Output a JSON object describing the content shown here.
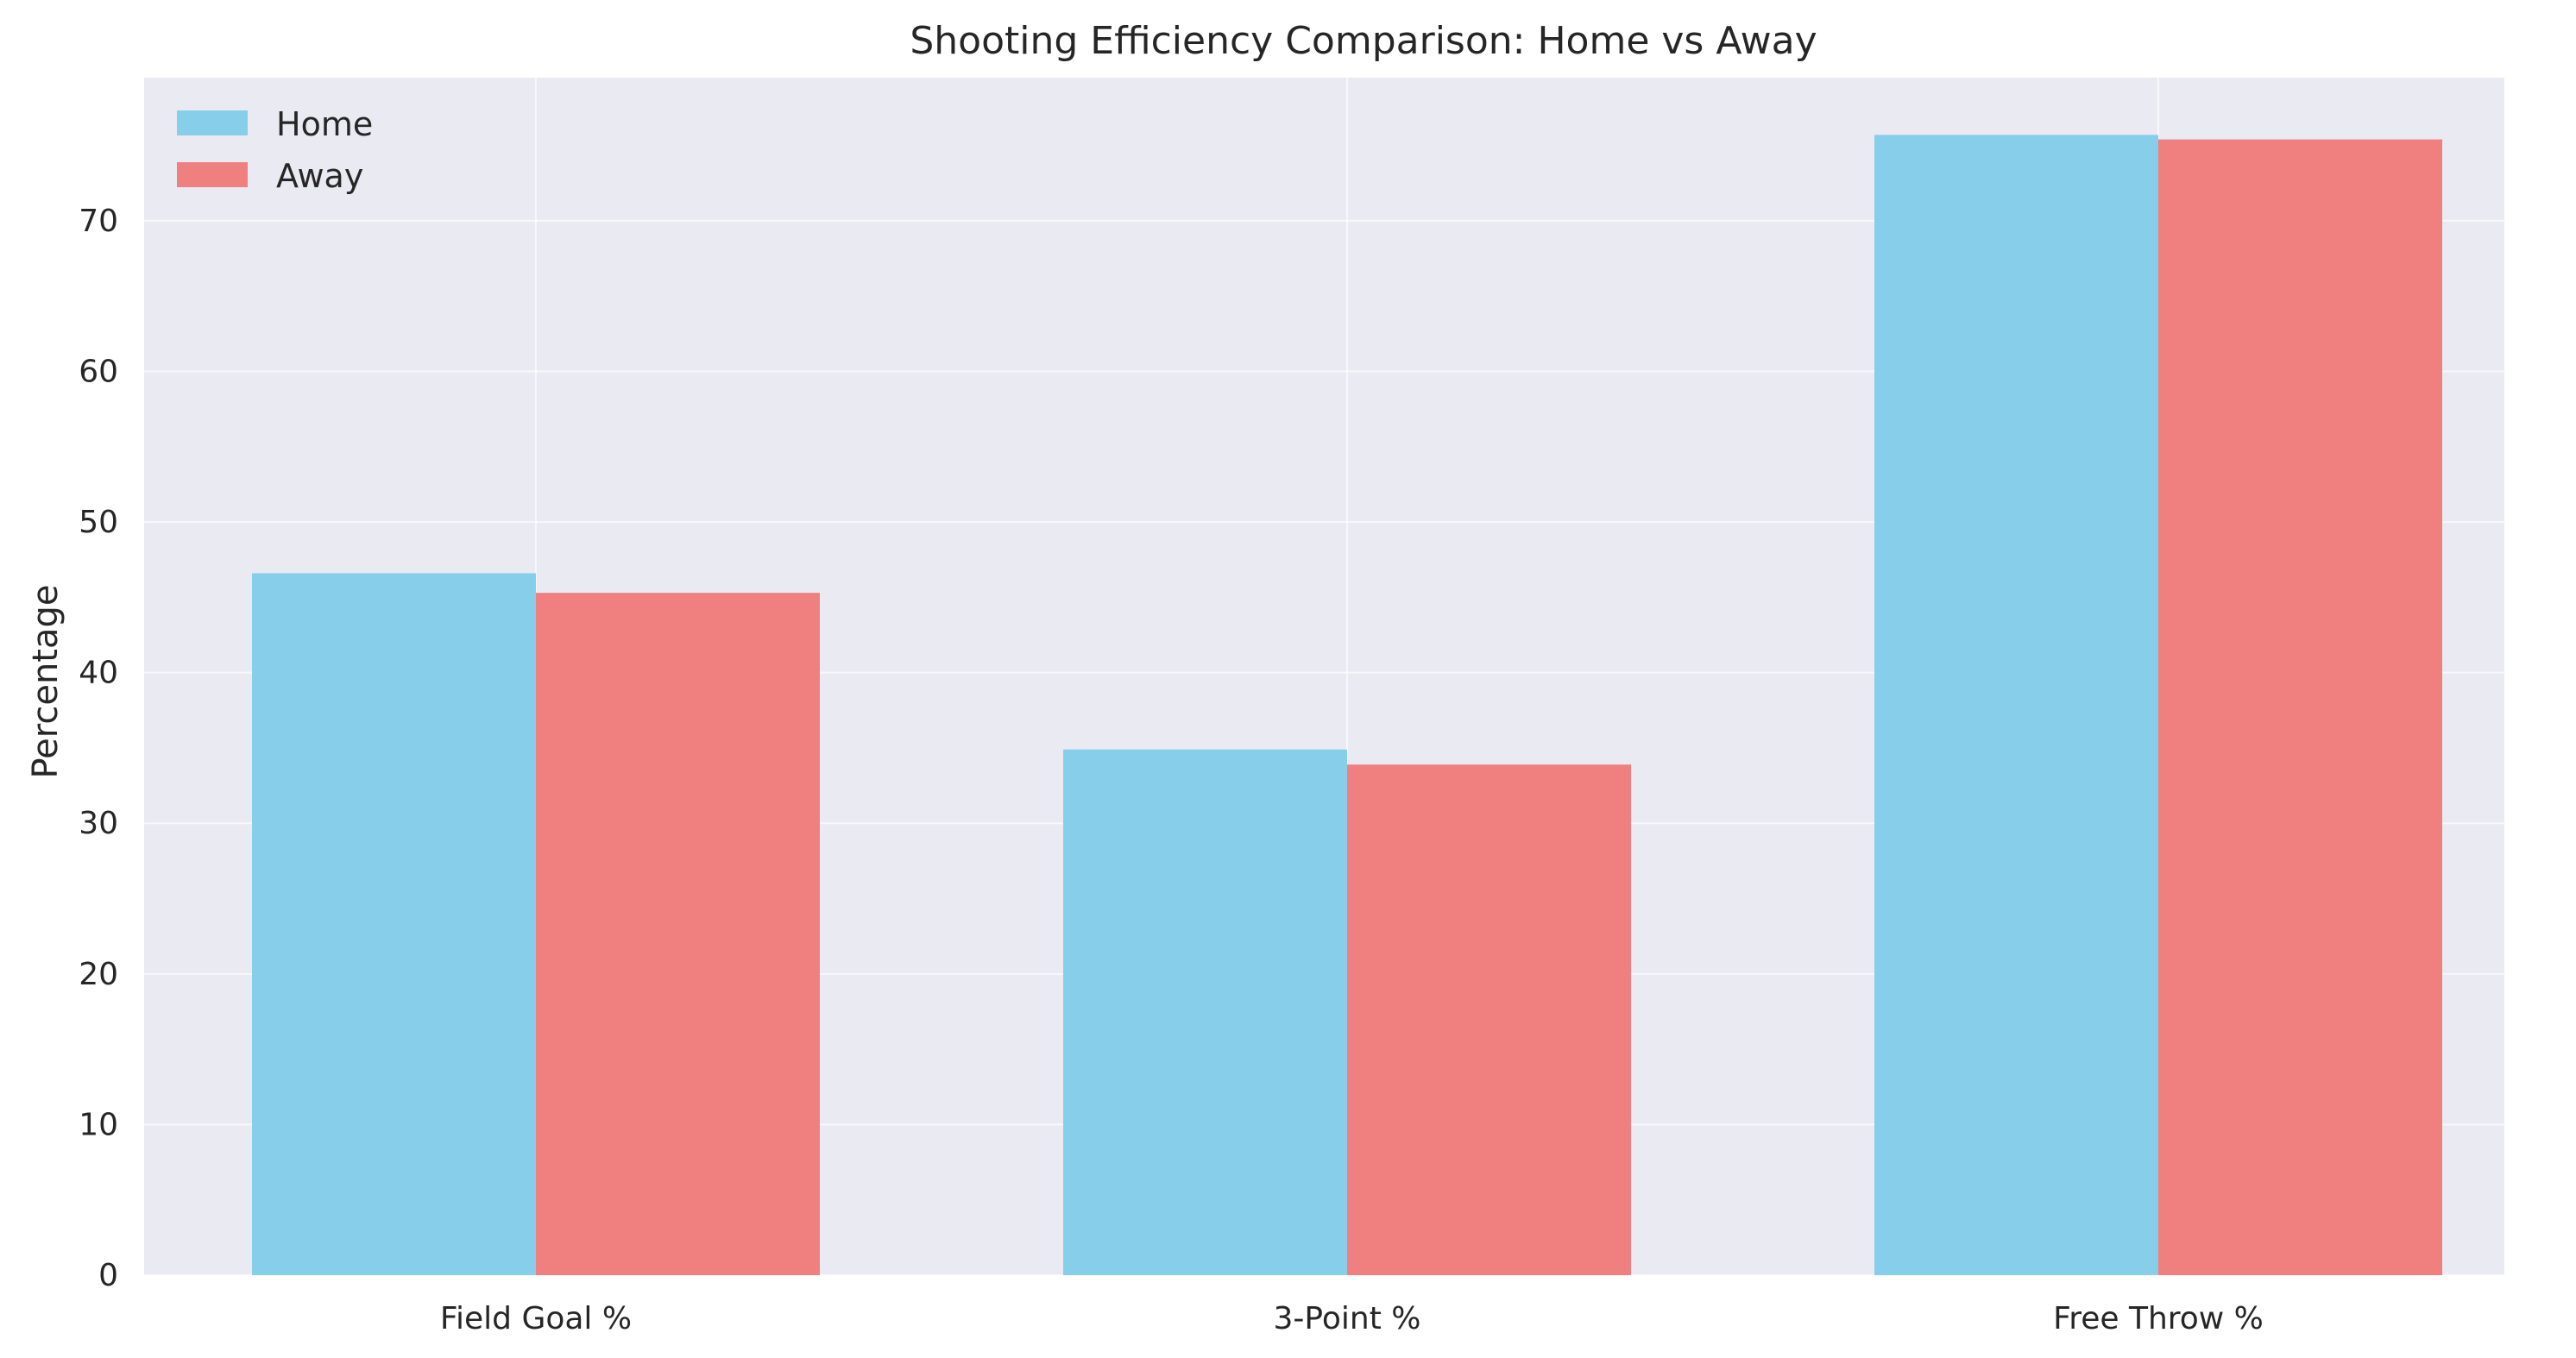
{
  "chart_data": {
    "type": "bar",
    "title": "Shooting Efficiency Comparison: Home vs Away",
    "xlabel": "",
    "ylabel": "Percentage",
    "categories": [
      "Field Goal %",
      "3-Point %",
      "Free Throw %"
    ],
    "series": [
      {
        "name": "Home",
        "color": "#87CEEB",
        "values": [
          46.6,
          34.9,
          75.7
        ]
      },
      {
        "name": "Away",
        "color": "#F08080",
        "values": [
          45.3,
          33.9,
          75.4
        ]
      }
    ],
    "ylim": [
      0,
      79.5
    ],
    "yticks": [
      0,
      10,
      20,
      30,
      40,
      50,
      60,
      70
    ],
    "grid": true,
    "legend_position": "top-left",
    "plot_background": "#EAEAF2"
  }
}
